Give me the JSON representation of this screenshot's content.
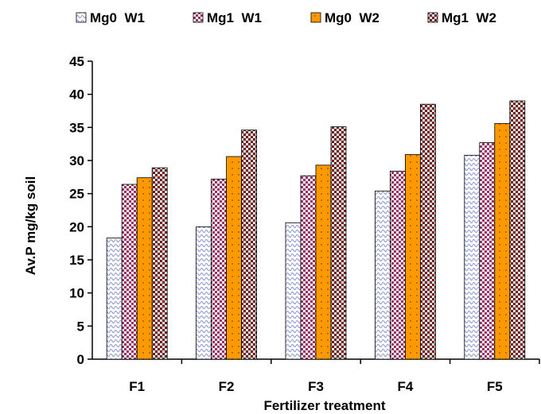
{
  "chart_data": {
    "type": "bar",
    "title": "",
    "xlabel": "Fertilizer treatment",
    "ylabel": "Av.P mg/kg soil",
    "categories": [
      "F1",
      "F2",
      "F3",
      "F4",
      "F5"
    ],
    "ylim": [
      0,
      45
    ],
    "yticks": [
      0,
      5,
      10,
      15,
      20,
      25,
      30,
      35,
      40,
      45
    ],
    "grid": false,
    "legend_position": "top",
    "series": [
      {
        "name": "Mg0  W1",
        "values": [
          18.3,
          20.0,
          20.6,
          25.4,
          30.8
        ]
      },
      {
        "name": "Mg1  W1",
        "values": [
          26.4,
          27.2,
          27.7,
          28.4,
          32.7
        ]
      },
      {
        "name": "Mg0  W2",
        "values": [
          27.4,
          30.6,
          29.3,
          30.9,
          35.6
        ]
      },
      {
        "name": "Mg1  W2",
        "values": [
          28.9,
          34.6,
          35.1,
          38.5,
          39.0
        ]
      }
    ]
  }
}
